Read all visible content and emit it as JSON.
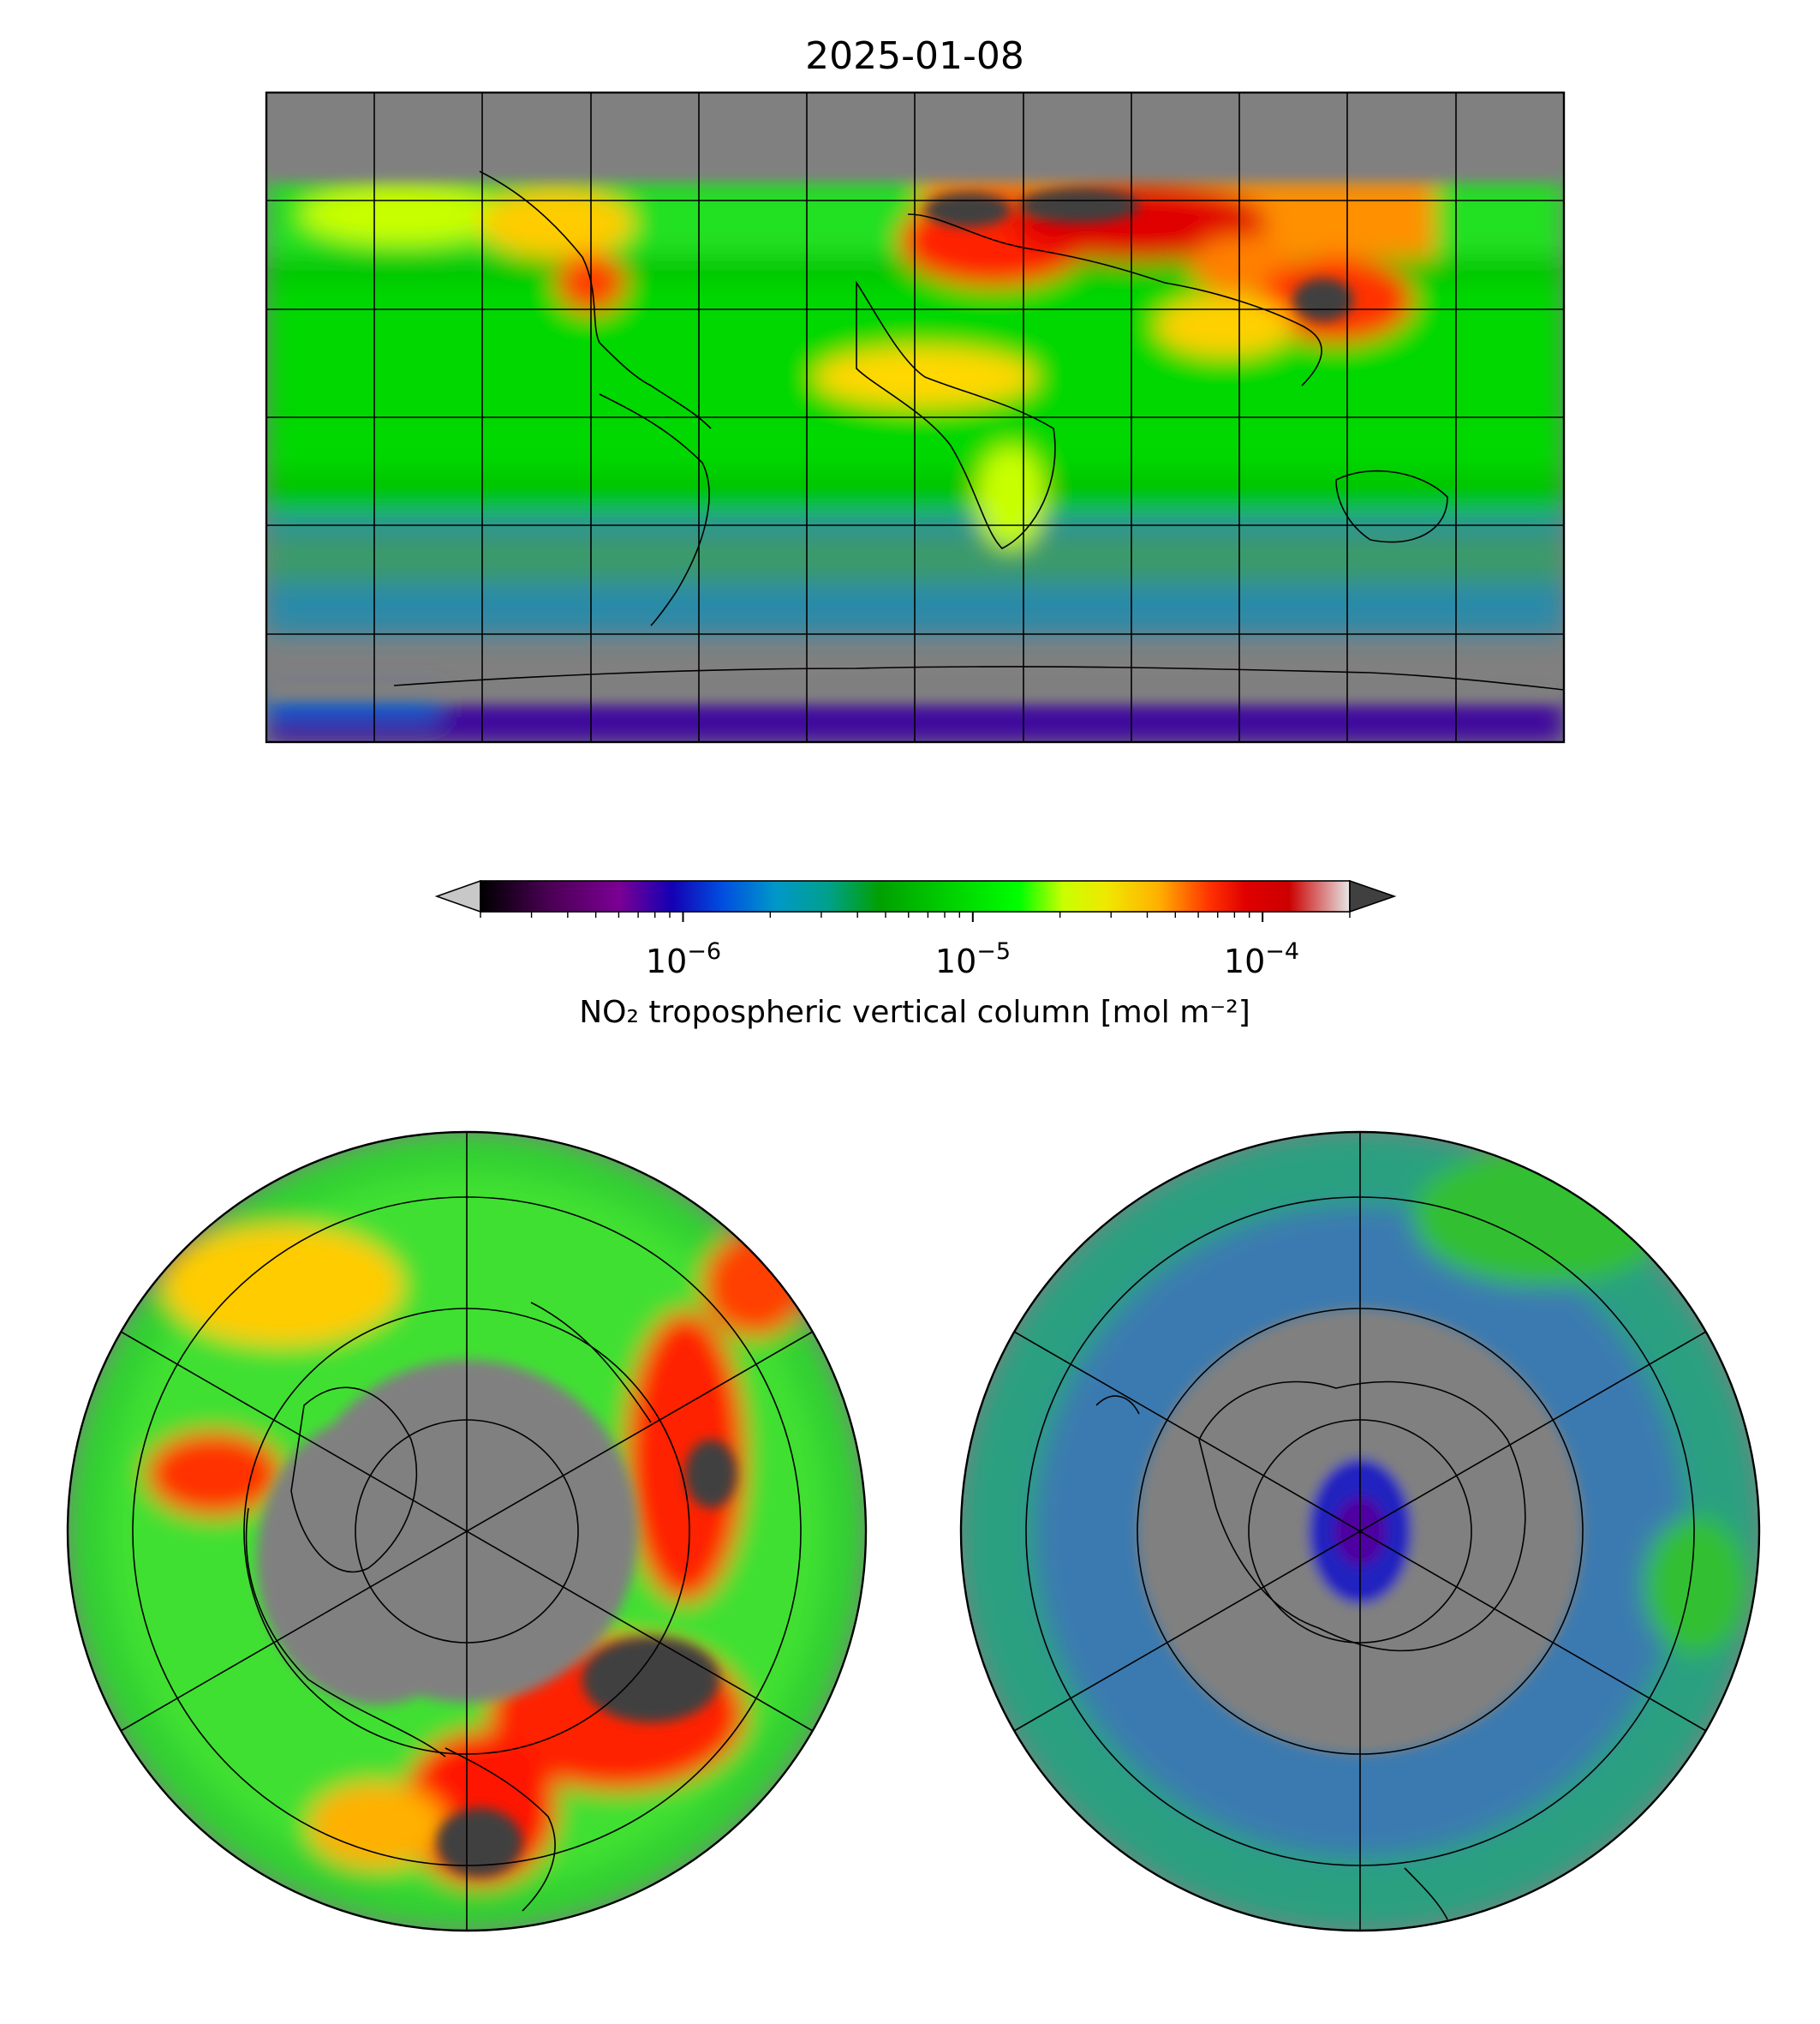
{
  "title": "2025-01-08",
  "colorbar": {
    "label": "NO₂ tropospheric vertical column [mol m⁻²]",
    "scale": "log",
    "range": [
      2e-07,
      0.0002
    ],
    "ticks": [
      {
        "base": "10",
        "exp": "−6",
        "value": 1e-06
      },
      {
        "base": "10",
        "exp": "−5",
        "value": 1e-05
      },
      {
        "base": "10",
        "exp": "−4",
        "value": 0.0001
      }
    ],
    "extend_low_color": "#c8c8c8",
    "extend_high_color": "#404040",
    "stops": [
      "#000000",
      "#4b0055",
      "#7b0094",
      "#1400b4",
      "#0050e0",
      "#0098c8",
      "#00a08c",
      "#00a000",
      "#00d700",
      "#00ff00",
      "#c8ff00",
      "#f0e800",
      "#ffb000",
      "#ff3000",
      "#e00000",
      "#cc0000",
      "#e6e6e6"
    ]
  },
  "maps": {
    "global": {
      "projection": "PlateCarree",
      "background": "#808080"
    },
    "north_pole": {
      "projection": "NorthPolarStereo",
      "background": "#808080"
    },
    "south_pole": {
      "projection": "SouthPolarStereo",
      "background": "#808080"
    }
  },
  "colors": {
    "nodata": "#808080",
    "saturated": "#404040"
  }
}
